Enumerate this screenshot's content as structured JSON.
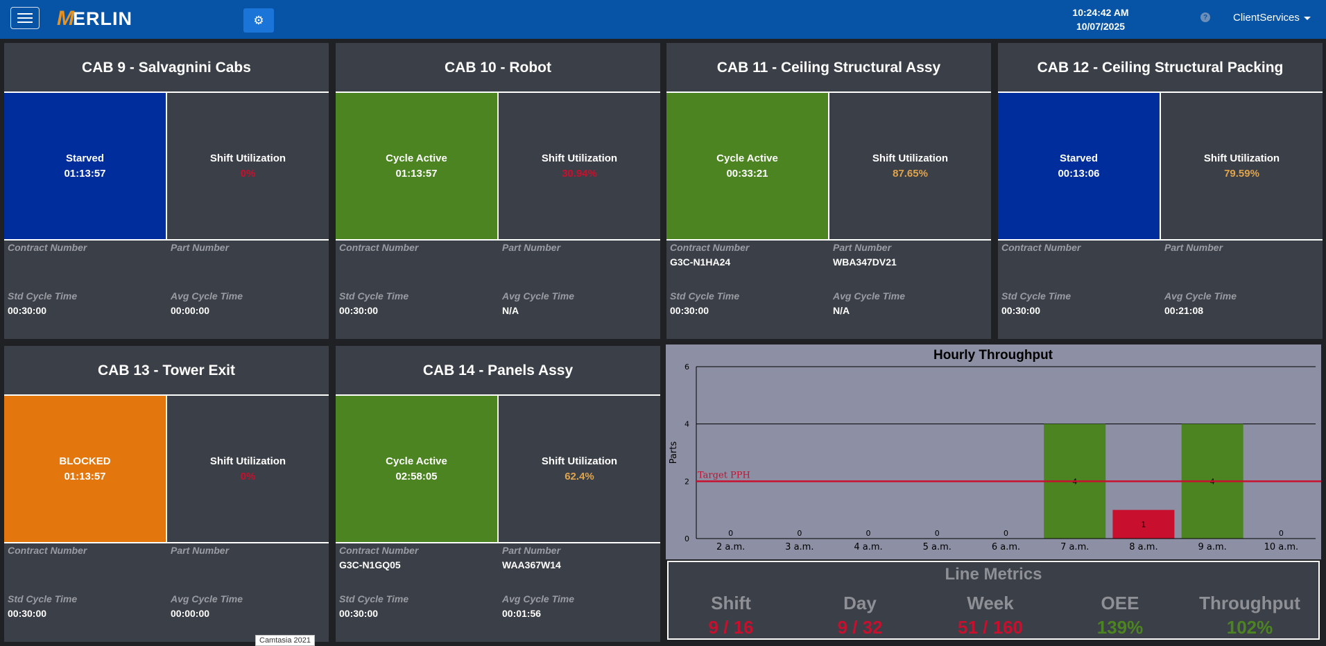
{
  "header": {
    "logo_first": "M",
    "logo_rest": "ERLIN",
    "time": "10:24:42 AM",
    "date": "10/07/2025",
    "help_glyph": "?",
    "user": "ClientServices",
    "bar_color": "#0753a6"
  },
  "labels": {
    "shift_utilization": "Shift Utilization",
    "contract_number": "Contract Number",
    "part_number": "Part Number",
    "std_cycle_time": "Std Cycle Time",
    "avg_cycle_time": "Avg Cycle Time"
  },
  "cabs": [
    {
      "title": "CAB 9 - Salvagnini Cabs",
      "state": "Starved",
      "state_time": "01:13:57",
      "state_color": "#002d9c",
      "utilization": "0%",
      "util_color": "#c8102e",
      "contract": "",
      "part": "",
      "std_cycle": "00:30:00",
      "avg_cycle": "00:00:00"
    },
    {
      "title": "CAB 10 - Robot",
      "state": "Cycle Active",
      "state_time": "01:13:57",
      "state_color": "#4b8421",
      "utilization": "30.94%",
      "util_color": "#c8102e",
      "contract": "",
      "part": "",
      "std_cycle": "00:30:00",
      "avg_cycle": "N/A"
    },
    {
      "title": "CAB 11 - Ceiling Structural Assy",
      "state": "Cycle Active",
      "state_time": "00:33:21",
      "state_color": "#4b8421",
      "utilization": "87.65%",
      "util_color": "#e0a44c",
      "contract": "G3C-N1HA24",
      "part": "WBA347DV21",
      "std_cycle": "00:30:00",
      "avg_cycle": "N/A"
    },
    {
      "title": "CAB 12 - Ceiling Structural Packing",
      "state": "Starved",
      "state_time": "00:13:06",
      "state_color": "#002d9c",
      "utilization": "79.59%",
      "util_color": "#e0a44c",
      "contract": "",
      "part": "",
      "std_cycle": "00:30:00",
      "avg_cycle": "00:21:08"
    },
    {
      "title": "CAB 13 - Tower Exit",
      "state": "BLOCKED",
      "state_time": "01:13:57",
      "state_color": "#e3760c",
      "utilization": "0%",
      "util_color": "#c8102e",
      "contract": "",
      "part": "",
      "std_cycle": "00:30:00",
      "avg_cycle": "00:00:00"
    },
    {
      "title": "CAB 14 - Panels Assy",
      "state": "Cycle Active",
      "state_time": "02:58:05",
      "state_color": "#4b8421",
      "utilization": "62.4%",
      "util_color": "#e0a44c",
      "contract": "G3C-N1GQ05",
      "part": "WAA367W14",
      "std_cycle": "00:30:00",
      "avg_cycle": "00:01:56"
    }
  ],
  "chart_data": {
    "type": "bar",
    "title": "Hourly Throughput",
    "xlabel": "",
    "ylabel": "Parts",
    "ylim": [
      0,
      6
    ],
    "yticks": [
      0,
      2,
      4,
      6
    ],
    "categories": [
      "2 a.m.",
      "3 a.m.",
      "4 a.m.",
      "5 a.m.",
      "6 a.m.",
      "7 a.m.",
      "8 a.m.",
      "9 a.m.",
      "10 a.m."
    ],
    "values": [
      0,
      0,
      0,
      0,
      0,
      4,
      1,
      4,
      0
    ],
    "bar_colors": [
      "#4b8421",
      "#4b8421",
      "#4b8421",
      "#4b8421",
      "#4b8421",
      "#4b8421",
      "#c8102e",
      "#4b8421",
      "#4b8421"
    ],
    "target": {
      "label": "Target PPH",
      "value": 2,
      "color": "#c8102e"
    },
    "grid": true
  },
  "line_metrics": {
    "title": "Line Metrics",
    "items": [
      {
        "label": "Shift",
        "value": "9 / 16",
        "color": "#c8102e"
      },
      {
        "label": "Day",
        "value": "9 / 32",
        "color": "#c8102e"
      },
      {
        "label": "Week",
        "value": "51 / 160",
        "color": "#c8102e"
      },
      {
        "label": "OEE",
        "value": "139%",
        "color": "#4b8421"
      },
      {
        "label": "Throughput",
        "value": "102%",
        "color": "#4b8421"
      }
    ]
  },
  "watermark": "Camtasia 2021"
}
